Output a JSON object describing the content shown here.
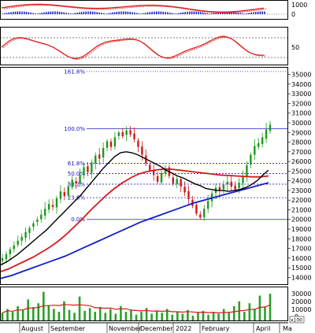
{
  "chart_data": {
    "type": "candlestick",
    "panels": {
      "macd": {
        "ticks": [
          "1000",
          "0"
        ]
      },
      "rsi": {
        "ticks": [
          "50"
        ]
      },
      "price": {
        "y_ticks": [
          "35000",
          "34000",
          "33000",
          "32000",
          "31000",
          "30000",
          "29000",
          "28000",
          "27000",
          "26000",
          "25000",
          "24000",
          "23000",
          "22000",
          "21000",
          "20000",
          "19000",
          "18000",
          "17000",
          "16000",
          "15000",
          "14000"
        ],
        "ylim": [
          13300,
          35700
        ],
        "fibonacci": [
          {
            "label": "161.8%",
            "value": 35300
          },
          {
            "label": "100.0%",
            "value": 29400
          },
          {
            "label": "61.8%",
            "value": 25800
          },
          {
            "label": "50.0%",
            "value": 24750
          },
          {
            "label": "38.2%",
            "value": 23650
          },
          {
            "label": "23.6%",
            "value": 22250
          },
          {
            "label": "0.0%",
            "value": 20000
          }
        ],
        "close_series": [
          16000,
          16400,
          16900,
          17300,
          17800,
          18200,
          18700,
          19100,
          19600,
          20000,
          20500,
          21100,
          21600,
          21300,
          22200,
          22900,
          22400,
          23400,
          24100,
          23700,
          24600,
          25400,
          24900,
          25900,
          26600,
          26300,
          27400,
          28100,
          27500,
          28500,
          29000,
          28600,
          29200,
          28800,
          28300,
          27500,
          26700,
          25800,
          25100,
          24600,
          23900,
          24800,
          25300,
          24500,
          23700,
          24200,
          23400,
          22800,
          22100,
          21400,
          20600,
          20200,
          21100,
          21900,
          22700,
          23300,
          23000,
          23600,
          23900,
          23400,
          23100,
          23800,
          24500,
          25600,
          26700,
          27600,
          27900,
          28500,
          29300,
          29800
        ],
        "ma_short": [
          15300,
          15600,
          16000,
          16400,
          16900,
          17400,
          17900,
          18400,
          18900,
          19500,
          20100,
          20700,
          21300,
          21900,
          22500,
          23200,
          23900,
          24600,
          25300,
          25900,
          26500,
          26900,
          27000,
          26900,
          26700,
          26400,
          26100,
          25800,
          25500,
          25100,
          24800,
          24500,
          24300,
          24000,
          23700,
          23500,
          23200,
          23100,
          23000,
          23000,
          22900,
          23000,
          23100,
          23300,
          23600,
          24000,
          24600,
          25100
        ],
        "ma_mid": [
          14600,
          14900,
          15300,
          15700,
          16100,
          16600,
          17100,
          17700,
          18400,
          19200,
          20000,
          20900,
          21700,
          22500,
          23200,
          23800,
          24300,
          24700,
          24950,
          25100,
          25200,
          25200,
          25100,
          25000,
          24900,
          24800,
          24700,
          24600,
          24550,
          24500,
          24450,
          24400,
          24400,
          24500
        ],
        "ma_long": [
          13900,
          14200,
          14600,
          15000,
          15400,
          15800,
          16200,
          16700,
          17200,
          17700,
          18200,
          18700,
          19200,
          19700,
          20100,
          20500,
          20900,
          21300,
          21700,
          22000,
          22300,
          22600,
          22900,
          23200,
          23500,
          23800
        ]
      },
      "volume": {
        "y_ticks": [
          "30000",
          "20000",
          "10000",
          "0"
        ],
        "unit": "x100",
        "values": [
          8000,
          12000,
          9000,
          15000,
          11000,
          22000,
          14000,
          18000,
          30000,
          16000,
          12000,
          9000,
          20000,
          11000,
          8000,
          25000,
          10000,
          13000,
          9000,
          14000,
          8000,
          12000,
          7000,
          15000,
          9000,
          11000,
          6000,
          9000,
          13000,
          7000,
          10000,
          8000,
          12000,
          6000,
          9000,
          7000,
          11000,
          5000,
          8000,
          10000,
          6000,
          9000,
          7000,
          12000,
          8000,
          15000,
          20000,
          9000,
          18000,
          12000,
          26000,
          14000,
          28000
        ]
      }
    },
    "x_labels": [
      "August",
      "September",
      "November",
      "December",
      "2022",
      "February",
      "April",
      "Ma"
    ]
  }
}
